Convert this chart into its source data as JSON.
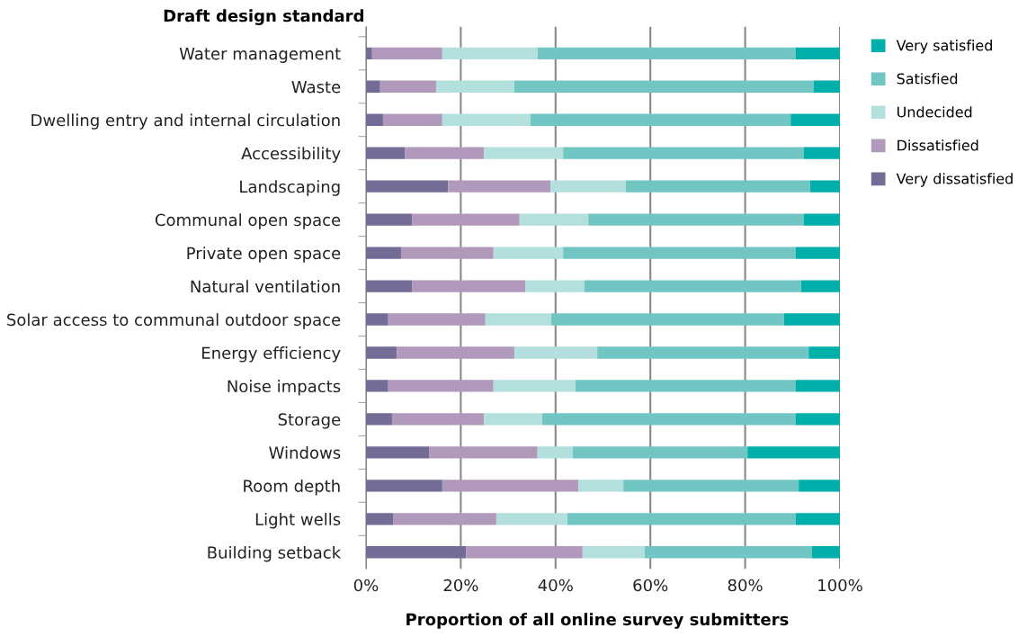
{
  "chart_data": {
    "type": "bar",
    "orientation": "horizontal",
    "stacked": true,
    "ylabel": "Draft design standard",
    "xlabel": "Proportion of all online survey submitters",
    "categories": [
      "Water management",
      "Waste",
      "Dwelling entry and internal circulation",
      "Accessibility",
      "Landscaping",
      "Communal open space",
      "Private open space",
      "Natural ventilation",
      "Solar access to communal outdoor space",
      "Energy efficiency",
      "Noise impacts",
      "Storage",
      "Windows",
      "Room depth",
      "Light wells",
      "Building setback"
    ],
    "series": [
      {
        "name": "Very dissatisfied",
        "color": "#736c96",
        "values": [
          1.3,
          3.0,
          3.6,
          8.2,
          17.3,
          9.7,
          7.4,
          9.7,
          4.7,
          6.5,
          4.7,
          5.5,
          13.3,
          16.1,
          5.7,
          21.1
        ]
      },
      {
        "name": "Dissatisfied",
        "color": "#b199bb",
        "values": [
          14.8,
          11.8,
          12.5,
          16.7,
          21.6,
          22.7,
          19.5,
          23.9,
          20.5,
          24.8,
          22.2,
          19.4,
          22.9,
          28.7,
          21.8,
          24.6
        ]
      },
      {
        "name": "Undecided",
        "color": "#b3dfdc",
        "values": [
          20.1,
          16.5,
          18.6,
          16.7,
          15.9,
          14.5,
          14.7,
          12.5,
          13.9,
          17.5,
          17.3,
          12.3,
          7.4,
          9.5,
          15.0,
          13.1
        ]
      },
      {
        "name": "Satisfied",
        "color": "#71c6c3",
        "values": [
          54.5,
          63.2,
          54.9,
          50.8,
          38.9,
          45.5,
          49.1,
          45.7,
          49.1,
          44.6,
          46.5,
          53.5,
          36.9,
          37.0,
          48.2,
          35.3
        ]
      },
      {
        "name": "Very satisfied",
        "color": "#00aeaa",
        "values": [
          9.3,
          5.5,
          10.4,
          7.6,
          6.3,
          7.6,
          9.3,
          8.2,
          11.8,
          6.6,
          9.3,
          9.3,
          19.5,
          8.7,
          9.3,
          5.9
        ]
      }
    ],
    "xlim": [
      0,
      100
    ],
    "xticks": [
      {
        "value": 0,
        "label": "0%"
      },
      {
        "value": 20,
        "label": "20%"
      },
      {
        "value": 40,
        "label": "40%"
      },
      {
        "value": 60,
        "label": "60%"
      },
      {
        "value": 80,
        "label": "80%"
      },
      {
        "value": 100,
        "label": "100%"
      }
    ],
    "grid": "x",
    "legend": "top right"
  }
}
